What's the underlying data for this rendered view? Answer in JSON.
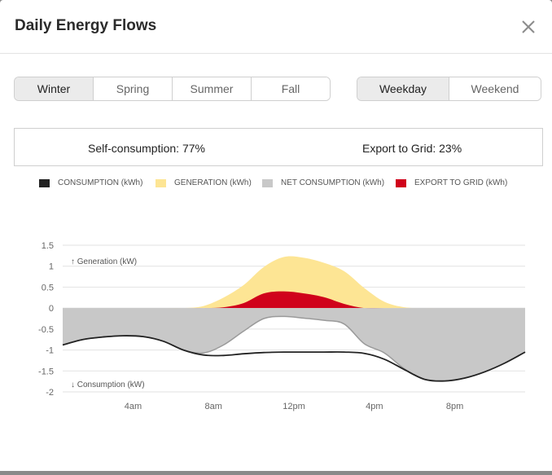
{
  "dialog": {
    "title": "Daily Energy Flows",
    "close_icon": "close-icon"
  },
  "season_tabs": [
    {
      "label": "Winter",
      "active": true
    },
    {
      "label": "Spring",
      "active": false
    },
    {
      "label": "Summer",
      "active": false
    },
    {
      "label": "Fall",
      "active": false
    }
  ],
  "day_tabs": [
    {
      "label": "Weekday",
      "active": true
    },
    {
      "label": "Weekend",
      "active": false
    }
  ],
  "stats": {
    "self_consumption": "Self-consumption: 77%",
    "export_to_grid": "Export to Grid: 23%"
  },
  "legend": [
    {
      "label": "CONSUMPTION (kWh)",
      "color": "#222222"
    },
    {
      "label": "GENERATION (kWh)",
      "color": "#fde594"
    },
    {
      "label": "NET CONSUMPTION (kWh)",
      "color": "#c8c8c8"
    },
    {
      "label": "EXPORT TO GRID (kWh)",
      "color": "#d0021b"
    }
  ],
  "chart_data": {
    "type": "area",
    "annotations": {
      "top": "↑ Generation (kW)",
      "bottom": "↓ Consumption (kW)"
    },
    "y_ticks": [
      "1.5",
      "1",
      "0.5",
      "0",
      "-0.5",
      "-1",
      "-1.5",
      "-2"
    ],
    "ylim": [
      -2,
      1.5
    ],
    "x_ticks": [
      {
        "hour": 4,
        "label": "4am"
      },
      {
        "hour": 8,
        "label": "8am"
      },
      {
        "hour": 12,
        "label": "12pm"
      },
      {
        "hour": 16,
        "label": "4pm"
      },
      {
        "hour": 20,
        "label": "8pm"
      }
    ],
    "xlim": [
      0.5,
      23.5
    ],
    "grid": true,
    "hours": [
      0.5,
      1.5,
      2.5,
      3.5,
      4.5,
      5.5,
      6.5,
      7.5,
      8.5,
      9.5,
      10.5,
      11.5,
      12.5,
      13.5,
      14.5,
      15.5,
      16.5,
      17.5,
      18.5,
      19.5,
      20.5,
      21.5,
      22.5,
      23.5
    ],
    "consumption": [
      -0.88,
      -0.75,
      -0.69,
      -0.66,
      -0.68,
      -0.79,
      -1.0,
      -1.12,
      -1.13,
      -1.09,
      -1.06,
      -1.05,
      -1.05,
      -1.05,
      -1.05,
      -1.08,
      -1.22,
      -1.47,
      -1.7,
      -1.74,
      -1.67,
      -1.52,
      -1.31,
      -1.05
    ],
    "generation": [
      0,
      0,
      0,
      0,
      0,
      0,
      0,
      0.05,
      0.25,
      0.55,
      0.98,
      1.22,
      1.2,
      1.08,
      0.88,
      0.48,
      0.15,
      0.02,
      0,
      0,
      0,
      0,
      0,
      0
    ],
    "net_consumption": [
      -0.88,
      -0.75,
      -0.69,
      -0.66,
      -0.68,
      -0.79,
      -1.0,
      -1.07,
      -0.88,
      -0.55,
      -0.25,
      -0.2,
      -0.24,
      -0.29,
      -0.38,
      -0.85,
      -1.07,
      -1.45,
      -1.7,
      -1.74,
      -1.67,
      -1.52,
      -1.31,
      -1.05
    ],
    "export_to_grid": [
      0,
      0,
      0,
      0,
      0,
      0,
      0,
      0,
      0.02,
      0.12,
      0.35,
      0.4,
      0.35,
      0.26,
      0.1,
      0,
      0,
      0,
      0,
      0,
      0,
      0,
      0,
      0
    ]
  }
}
